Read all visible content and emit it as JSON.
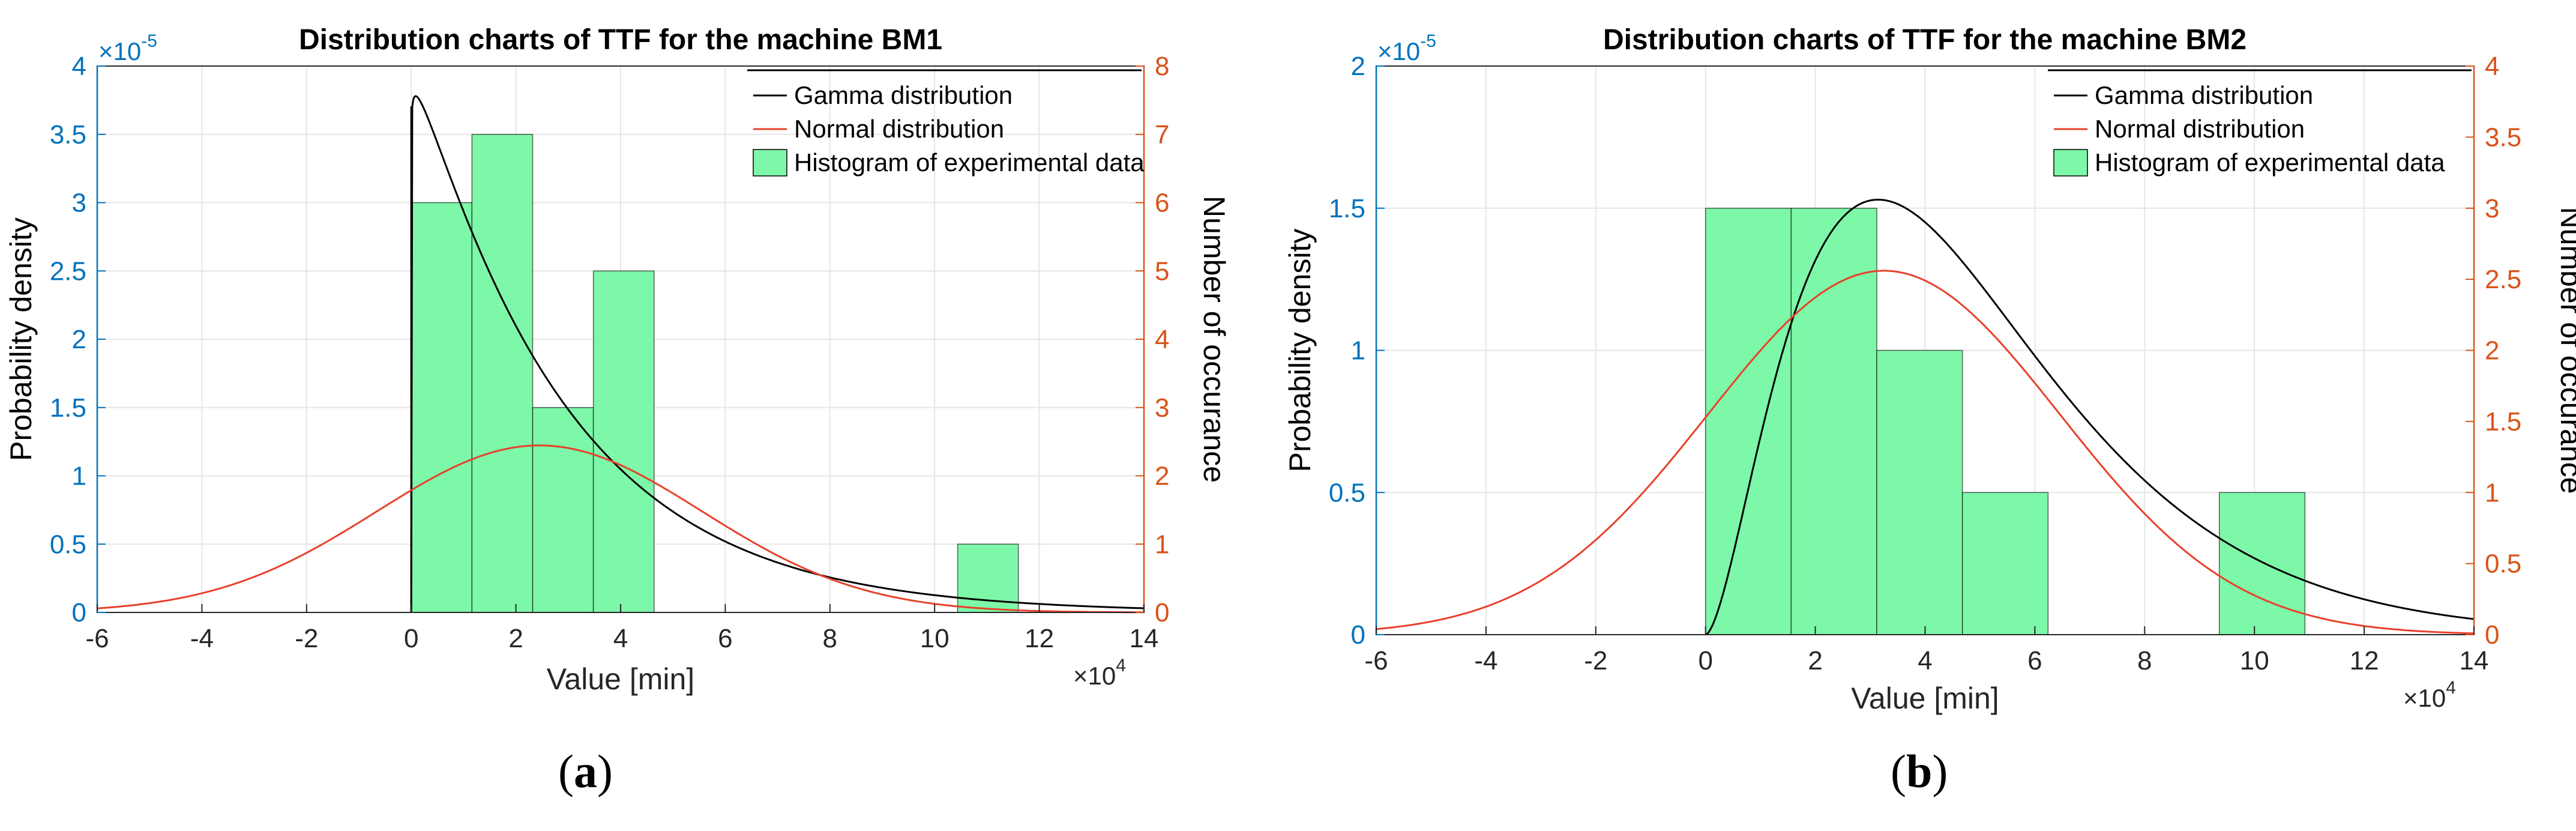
{
  "figure": {
    "panels": [
      {
        "label_open": "(",
        "label_letter": "a",
        "label_close": ")"
      },
      {
        "label_open": "(",
        "label_letter": "b",
        "label_close": ")"
      }
    ]
  },
  "colors": {
    "gamma": "#000000",
    "normal": "#e8402a",
    "hist_fill": "#7df7a8",
    "hist_edge": "#000000",
    "left_axis": "#0072bd",
    "right_axis": "#d95319",
    "grid": "#e6e6e6"
  },
  "chart_data": [
    {
      "type": "line+histogram",
      "title": "Distribution charts of TTF for the machine BM1",
      "xlabel": "Value [min]",
      "ylabel_left": "Probability density",
      "ylabel_right": "Number of occurance",
      "x_multiplier": "×10",
      "x_multiplier_exp": "4",
      "y_multiplier": "×10",
      "y_multiplier_exp": "-5",
      "xlim": [
        -6,
        14
      ],
      "xticks": [
        -6,
        -4,
        -2,
        0,
        2,
        4,
        6,
        8,
        10,
        12,
        14
      ],
      "ylim_left": [
        0,
        4
      ],
      "yticks_left": [
        0,
        0.5,
        1,
        1.5,
        2,
        2.5,
        3,
        3.5,
        4
      ],
      "ylim_right": [
        0,
        8
      ],
      "yticks_right": [
        0,
        1,
        2,
        3,
        4,
        5,
        6,
        7,
        8
      ],
      "grid": true,
      "legend_position": "top-right",
      "legend": [
        "Gamma distribution",
        "Normal distribution",
        "Histogram of experimental data"
      ],
      "histogram": {
        "bins": [
          {
            "from": 0.0,
            "to": 1.16,
            "count": 6
          },
          {
            "from": 1.16,
            "to": 2.32,
            "count": 7
          },
          {
            "from": 2.32,
            "to": 3.48,
            "count": 3
          },
          {
            "from": 3.48,
            "to": 4.64,
            "count": 5
          },
          {
            "from": 10.44,
            "to": 11.6,
            "count": 1
          }
        ]
      },
      "gamma": {
        "shape": 1.03,
        "scale": 2.8,
        "peak": 3.78
      },
      "normal": {
        "mean": 2.45,
        "sd": 3.1
      }
    },
    {
      "type": "line+histogram",
      "title": "Distribution charts of TTF for the machine BM2",
      "xlabel": "Value [min]",
      "ylabel_left": "Probability density",
      "ylabel_right": "Number of occurance",
      "x_multiplier": "×10",
      "x_multiplier_exp": "4",
      "y_multiplier": "×10",
      "y_multiplier_exp": "-5",
      "xlim": [
        -6,
        14
      ],
      "xticks": [
        -6,
        -4,
        -2,
        0,
        2,
        4,
        6,
        8,
        10,
        12,
        14
      ],
      "ylim_left": [
        0,
        2
      ],
      "yticks_left": [
        0,
        0.5,
        1,
        1.5,
        2
      ],
      "ylim_right": [
        0,
        4
      ],
      "yticks_right": [
        0,
        0.5,
        1,
        1.5,
        2,
        2.5,
        3,
        3.5,
        4
      ],
      "grid": true,
      "legend_position": "top-right",
      "legend": [
        "Gamma distribution",
        "Normal distribution",
        "Histogram of experimental data"
      ],
      "histogram": {
        "bins": [
          {
            "from": 0.0,
            "to": 1.56,
            "count": 3
          },
          {
            "from": 1.56,
            "to": 3.12,
            "count": 3
          },
          {
            "from": 3.12,
            "to": 4.68,
            "count": 2
          },
          {
            "from": 4.68,
            "to": 6.24,
            "count": 1
          },
          {
            "from": 9.36,
            "to": 10.92,
            "count": 1
          }
        ]
      },
      "gamma": {
        "shape": 2.7,
        "scale": 1.85,
        "peak": 1.53
      },
      "normal": {
        "mean": 3.25,
        "sd": 3.2,
        "peak": 1.28
      }
    }
  ]
}
